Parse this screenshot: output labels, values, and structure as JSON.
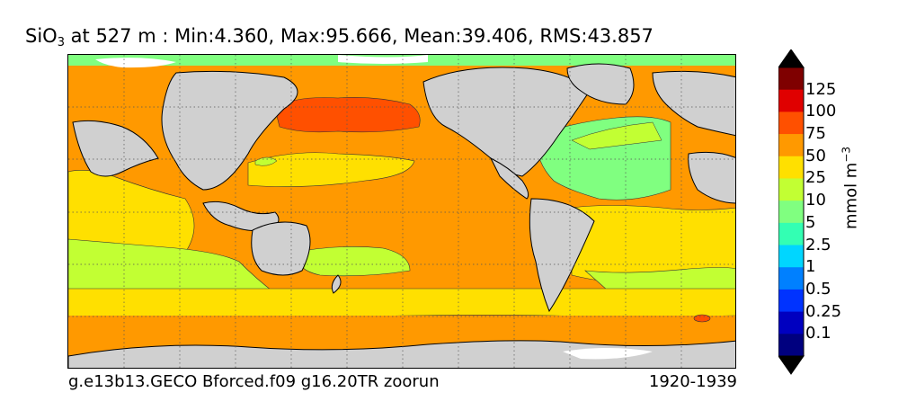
{
  "title": {
    "prefix": "SiO",
    "subscript": "3",
    "rest": " at 527 m : Min:4.360, Max:95.666, Mean:39.406, RMS:43.857"
  },
  "footer": {
    "run_name": "g.e13b13.GECO Bforced.f09 g16.20TR zoorun",
    "years": "1920-1939"
  },
  "colorbar": {
    "unit_base": "mmol m",
    "unit_exponent": "−3",
    "labels": [
      "125",
      "100",
      "75",
      "50",
      "25",
      "10",
      "5",
      "2.5",
      "1",
      "0.5",
      "0.25",
      "0.1"
    ],
    "colors_top_to_bottom": [
      "#7f0000",
      "#e00000",
      "#ff5000",
      "#ff9900",
      "#ffe000",
      "#c2ff33",
      "#80ff80",
      "#33ffb3",
      "#00d6ff",
      "#0080ff",
      "#0033ff",
      "#0000c0",
      "#00007f"
    ],
    "under_color": "#000000",
    "over_color": "#000000"
  },
  "map_colors": {
    "land": "#d0d0d0",
    "ice": "#ffffff",
    "band_5_10": "#80ff80",
    "band_10_25": "#c2ff33",
    "band_25_50": "#ffe000",
    "band_50_75": "#ff9900",
    "band_75_100": "#ff5000"
  }
}
